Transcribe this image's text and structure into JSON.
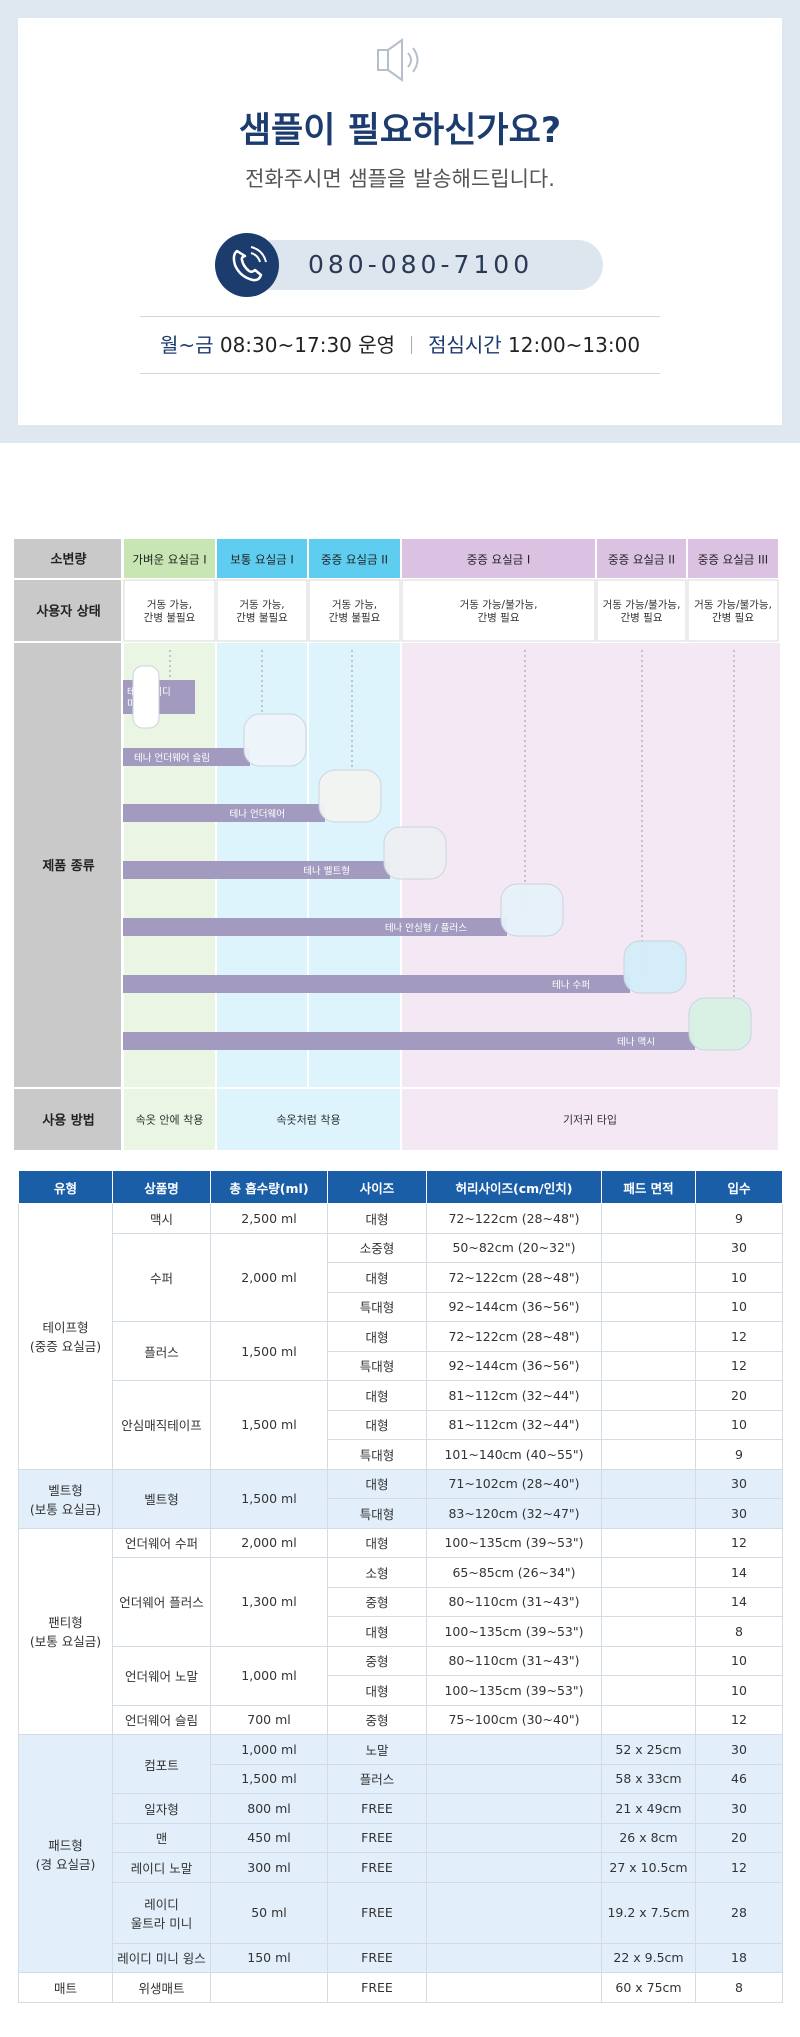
{
  "sample": {
    "title": "샘플이 필요하신가요?",
    "subtitle": "전화주시면 샘플을 발송해드립니다.",
    "phone": "080-080-7100",
    "hours": {
      "days": "월~금",
      "time": "08:30~17:30 운영",
      "lunch_label": "점심시간",
      "lunch_time": "12:00~13:00"
    }
  },
  "product_chart": {
    "row_labels": [
      "소변량",
      "사용자 상태",
      "제품 종류",
      "사용 방법"
    ],
    "levels": [
      "가벼운 요실금 I",
      "보통 요실금 I",
      "중증 요실금 II",
      "중증 요실금 I",
      "중증 요실금 II",
      "중증 요실금 III"
    ],
    "user_states": [
      [
        "거동 가능,",
        "간병 불필요"
      ],
      [
        "거동 가능,",
        "간병 불필요"
      ],
      [
        "거동 가능,",
        "간병 불필요"
      ],
      [
        "거동 가능/불가능,",
        "간병 필요"
      ],
      [
        "거동 가능/불가능,",
        "간병 필요"
      ],
      [
        "거동 가능/불가능,",
        "간병 필요"
      ]
    ],
    "products": [
      [
        "테나레이디",
        "미니"
      ],
      [
        "테나 언더웨어 슬림"
      ],
      [
        "테나 언더웨어"
      ],
      [
        "테나 벨트형"
      ],
      [
        "테나 안심형 / 플러스"
      ],
      [
        "테나 수퍼"
      ],
      [
        "테나 맥시"
      ]
    ],
    "usage": [
      "속옷 안에 착용",
      "속옷처럼 착용",
      "기저귀 타입"
    ]
  },
  "spec_table": {
    "header": [
      "유형",
      "상품명",
      "총 흡수량(ml)",
      "사이즈",
      "허리사이즈(cm/인치)",
      "패드 면적",
      "입수"
    ],
    "groups": [
      {
        "type": "테이프형\n(중증 요실금)",
        "products": [
          {
            "name": "맥시",
            "absorbency": "2,500 ml",
            "sizes": [
              {
                "size": "대형",
                "waist": "72~122cm (28~48\")",
                "count": 9
              }
            ]
          },
          {
            "name": "수퍼",
            "absorbency": "2,000 ml",
            "sizes": [
              {
                "size": "소중형",
                "waist": "50~82cm (20~32\")",
                "count": 30
              },
              {
                "size": "대형",
                "waist": "72~122cm (28~48\")",
                "count": 10
              },
              {
                "size": "특대형",
                "waist": "92~144cm (36~56\")",
                "count": 10
              }
            ]
          },
          {
            "name": "플러스",
            "absorbency": "1,500 ml",
            "sizes": [
              {
                "size": "대형",
                "waist": "72~122cm (28~48\")",
                "count": 12
              },
              {
                "size": "특대형",
                "waist": "92~144cm (36~56\")",
                "count": 12
              }
            ]
          },
          {
            "name": "안심매직테이프",
            "absorbency": "1,500 ml",
            "sizes": [
              {
                "size": "대형",
                "waist": "81~112cm (32~44\")",
                "count": 20
              },
              {
                "size": "대형",
                "waist": "81~112cm (32~44\")",
                "count": 10
              },
              {
                "size": "특대형",
                "waist": "101~140cm (40~55\")",
                "count": 9
              }
            ]
          }
        ]
      },
      {
        "type": "벨트형\n(보통 요실금)",
        "products": [
          {
            "name": "벨트형",
            "absorbency": "1,500 ml",
            "sizes": [
              {
                "size": "대형",
                "waist": "71~102cm (28~40\")",
                "count": 30
              },
              {
                "size": "특대형",
                "waist": "83~120cm (32~47\")",
                "count": 30
              }
            ]
          }
        ]
      },
      {
        "type": "팬티형\n(보통 요실금)",
        "products": [
          {
            "name": "언더웨어 수퍼",
            "absorbency": "2,000 ml",
            "sizes": [
              {
                "size": "대형",
                "waist": "100~135cm (39~53\")",
                "count": 12
              }
            ]
          },
          {
            "name": "언더웨어 플러스",
            "absorbency": "1,300 ml",
            "sizes": [
              {
                "size": "소형",
                "waist": "65~85cm (26~34\")",
                "count": 14
              },
              {
                "size": "중형",
                "waist": "80~110cm (31~43\")",
                "count": 14
              },
              {
                "size": "대형",
                "waist": "100~135cm (39~53\")",
                "count": 8
              }
            ]
          },
          {
            "name": "언더웨어 노말",
            "absorbency": "1,000 ml",
            "sizes": [
              {
                "size": "중형",
                "waist": "80~110cm (31~43\")",
                "count": 10
              },
              {
                "size": "대형",
                "waist": "100~135cm (39~53\")",
                "count": 10
              }
            ]
          },
          {
            "name": "언더웨어 슬림",
            "absorbency": "700 ml",
            "sizes": [
              {
                "size": "중형",
                "waist": "75~100cm (30~40\")",
                "count": 12
              }
            ]
          }
        ]
      },
      {
        "type": "패드형\n(경 요실금)",
        "products": [
          {
            "name": "컴포트",
            "sizes": [
              {
                "absorbency": "1,000 ml",
                "size": "노말",
                "pad": "52 x 25cm",
                "count": 30
              },
              {
                "absorbency": "1,500 ml",
                "size": "플러스",
                "pad": "58 x 33cm",
                "count": 46
              }
            ]
          },
          {
            "name": "일자형",
            "absorbency": "800 ml",
            "sizes": [
              {
                "size": "FREE",
                "pad": "21 x 49cm",
                "count": 30
              }
            ]
          },
          {
            "name": "맨",
            "absorbency": "450 ml",
            "sizes": [
              {
                "size": "FREE",
                "pad": "26 x 8cm",
                "count": 20
              }
            ]
          },
          {
            "name": "레이디 노말",
            "absorbency": "300 ml",
            "sizes": [
              {
                "size": "FREE",
                "pad": "27 x 10.5cm",
                "count": 12
              }
            ]
          },
          {
            "name": "레이디\n울트라 미니",
            "absorbency": "50 ml",
            "sizes": [
              {
                "size": "FREE",
                "pad": "19.2 x 7.5cm",
                "count": 28
              }
            ]
          },
          {
            "name": "레이디 미니 윙스",
            "absorbency": "150 ml",
            "sizes": [
              {
                "size": "FREE",
                "pad": "22 x 9.5cm",
                "count": 18
              }
            ]
          }
        ]
      },
      {
        "type": "매트",
        "products": [
          {
            "name": "위생매트",
            "sizes": [
              {
                "size": "FREE",
                "pad": "60 x 75cm",
                "count": 8
              }
            ]
          }
        ]
      }
    ]
  }
}
